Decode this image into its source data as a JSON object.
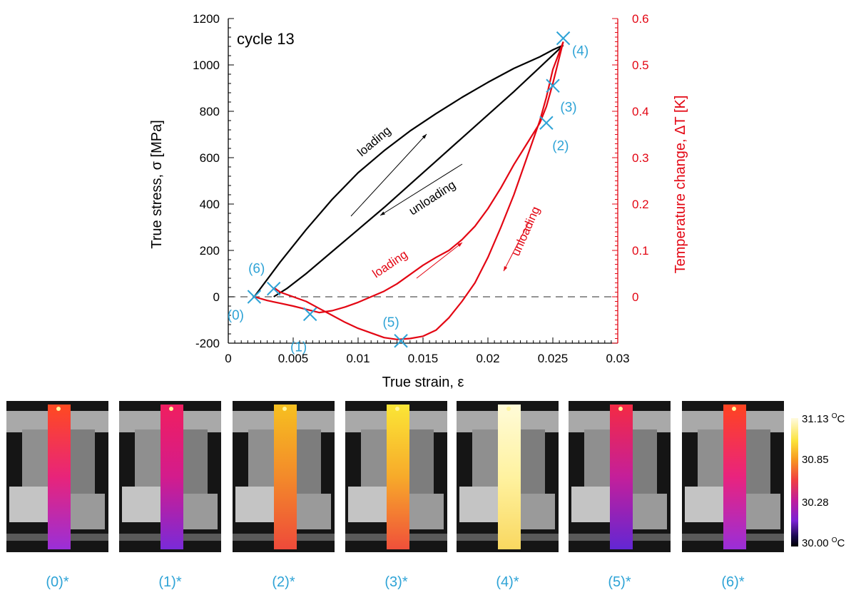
{
  "chart_data": {
    "type": "line",
    "title": "cycle 13",
    "xlabel": "True strain, ε",
    "ylabel": "True stress, σ [MPa]",
    "y2label": "Temperature change, ΔT  [K]",
    "xlim": [
      0,
      0.03
    ],
    "ylim": [
      -200,
      1200
    ],
    "y2lim": [
      -0.1,
      0.6
    ],
    "x_ticks": [
      "0",
      "0.005",
      "0.01",
      "0.015",
      "0.02",
      "0.025",
      "0.03"
    ],
    "x_tick_values": [
      0,
      0.005,
      0.01,
      0.015,
      0.02,
      0.025,
      0.03
    ],
    "y_ticks": [
      "-200",
      "0",
      "200",
      "400",
      "600",
      "800",
      "1000",
      "1200"
    ],
    "y_tick_values": [
      -200,
      0,
      200,
      400,
      600,
      800,
      1000,
      1200
    ],
    "y2_ticks": [
      "0",
      "0.1",
      "0.2",
      "0.3",
      "0.4",
      "0.5",
      "0.6"
    ],
    "y2_tick_values": [
      0,
      0.1,
      0.2,
      0.3,
      0.4,
      0.5,
      0.6
    ],
    "colors": {
      "stress": "#000000",
      "temperature": "#e30613",
      "points": "#2ea3d6"
    },
    "series": [
      {
        "axis": "left",
        "color": "#000000",
        "x": [
          0.002,
          0.004,
          0.006,
          0.008,
          0.01,
          0.012,
          0.014,
          0.016,
          0.018,
          0.02,
          0.022,
          0.024,
          0.025,
          0.0258
        ],
        "y": [
          0,
          150,
          290,
          420,
          535,
          630,
          715,
          790,
          860,
          925,
          985,
          1035,
          1065,
          1085
        ]
      },
      {
        "axis": "left",
        "color": "#000000",
        "x": [
          0.0258,
          0.024,
          0.022,
          0.02,
          0.018,
          0.016,
          0.014,
          0.012,
          0.01,
          0.008,
          0.006,
          0.0045,
          0.0035
        ],
        "y": [
          1085,
          990,
          885,
          785,
          685,
          585,
          485,
          385,
          290,
          195,
          100,
          35,
          0
        ]
      },
      {
        "axis": "right",
        "color": "#e30613",
        "x": [
          0.002,
          0.003,
          0.004,
          0.005,
          0.006,
          0.007,
          0.008,
          0.009,
          0.01,
          0.011,
          0.012,
          0.013,
          0.014,
          0.015,
          0.016,
          0.017,
          0.018,
          0.019,
          0.02,
          0.021,
          0.022,
          0.023,
          0.024,
          0.0245,
          0.025,
          0.0258
        ],
        "y": [
          0,
          -0.008,
          -0.014,
          -0.02,
          -0.027,
          -0.034,
          -0.03,
          -0.022,
          -0.012,
          0.0,
          0.012,
          0.028,
          0.048,
          0.068,
          0.085,
          0.1,
          0.123,
          0.152,
          0.19,
          0.235,
          0.285,
          0.33,
          0.375,
          0.41,
          0.46,
          0.55
        ]
      },
      {
        "axis": "right",
        "color": "#e30613",
        "x": [
          0.0258,
          0.025,
          0.0245,
          0.024,
          0.023,
          0.022,
          0.021,
          0.02,
          0.019,
          0.018,
          0.017,
          0.016,
          0.015,
          0.014,
          0.013,
          0.012,
          0.011,
          0.01,
          0.009,
          0.008,
          0.007,
          0.006,
          0.005,
          0.004,
          0.0035
        ],
        "y": [
          0.55,
          0.49,
          0.43,
          0.38,
          0.3,
          0.22,
          0.15,
          0.085,
          0.03,
          -0.01,
          -0.045,
          -0.072,
          -0.085,
          -0.09,
          -0.092,
          -0.088,
          -0.078,
          -0.068,
          -0.055,
          -0.04,
          -0.025,
          -0.01,
          0.0,
          0.01,
          0.02
        ]
      }
    ],
    "dashed_zero_line": true,
    "annotations": [
      {
        "text": "loading",
        "color": "#000000"
      },
      {
        "text": "unloading",
        "color": "#000000"
      },
      {
        "text": "loading",
        "color": "#e30613"
      },
      {
        "text": "unloading",
        "color": "#e30613"
      }
    ],
    "markers": [
      {
        "label": "(0)",
        "x": 0.002,
        "y": 0
      },
      {
        "label": "(1)",
        "x": 0.0063,
        "y": -75
      },
      {
        "label": "(2)",
        "x": 0.0245,
        "y": 750
      },
      {
        "label": "(3)",
        "x": 0.025,
        "y": 910
      },
      {
        "label": "(4)",
        "x": 0.0258,
        "y": 1115
      },
      {
        "label": "(5)",
        "x": 0.0133,
        "y": -190
      },
      {
        "label": "(6)",
        "x": 0.0035,
        "y": 35
      }
    ]
  },
  "colorbar": {
    "labels": [
      "31.13 ",
      "30.85",
      "30.28",
      "30.00 "
    ],
    "unit_sup": "O",
    "unit": "C"
  },
  "panels": [
    {
      "caption": "(0)*",
      "top": "#ff4a20",
      "mid": "#e8247a",
      "bottom": "#9a2fd8"
    },
    {
      "caption": "(1)*",
      "top": "#f01e60",
      "mid": "#d31c8c",
      "bottom": "#7a2ad8"
    },
    {
      "caption": "(2)*",
      "top": "#f6c020",
      "mid": "#f38a2a",
      "bottom": "#ee4a3a"
    },
    {
      "caption": "(3)*",
      "top": "#fbe636",
      "mid": "#f7aa2a",
      "bottom": "#f0503a"
    },
    {
      "caption": "(4)*",
      "top": "#fffbd8",
      "mid": "#fff2a0",
      "bottom": "#f9d860"
    },
    {
      "caption": "(5)*",
      "top": "#f42a44",
      "mid": "#c41f9a",
      "bottom": "#6326d4"
    },
    {
      "caption": "(6)*",
      "top": "#ff4420",
      "mid": "#e9237e",
      "bottom": "#9a2ed8"
    }
  ]
}
